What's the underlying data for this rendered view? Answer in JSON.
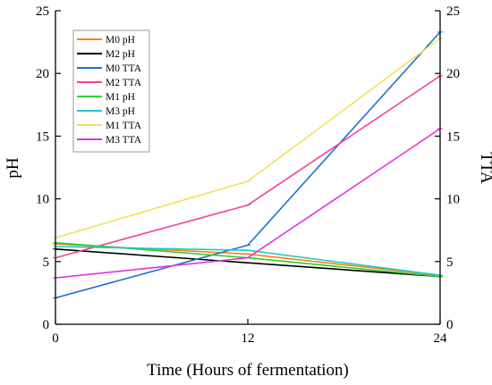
{
  "chart_data": {
    "type": "line",
    "x": [
      0,
      12,
      24
    ],
    "xlabel": "Time (Hours of fermentation)",
    "ylabel_left": "pH",
    "ylabel_right": "TTA",
    "xlim": [
      0,
      24
    ],
    "ylim_left": [
      0,
      25
    ],
    "ylim_right": [
      0,
      25
    ],
    "x_ticks": [
      0,
      12,
      24
    ],
    "y_ticks_left": [
      0,
      5,
      10,
      15,
      20,
      25
    ],
    "y_ticks_right": [
      0,
      5,
      10,
      15,
      20,
      25
    ],
    "grid": false,
    "legend_position": "top-left",
    "series": [
      {
        "name": "M0 pH",
        "color": "#ff7f0e",
        "values": [
          6.4,
          5.6,
          3.9
        ]
      },
      {
        "name": "M2 pH",
        "color": "#000000",
        "values": [
          6.0,
          4.9,
          3.8
        ]
      },
      {
        "name": "M0 TTA",
        "color": "#1f6fd0",
        "values": [
          2.1,
          6.3,
          23.3
        ]
      },
      {
        "name": "M2 TTA",
        "color": "#f0459a",
        "values": [
          5.3,
          9.5,
          19.8
        ]
      },
      {
        "name": "M1 pH",
        "color": "#2fcc2f",
        "values": [
          6.5,
          5.3,
          3.8
        ]
      },
      {
        "name": "M3 pH",
        "color": "#20c8c8",
        "values": [
          6.2,
          5.9,
          3.9
        ]
      },
      {
        "name": "M1 TTA",
        "color": "#f2e15a",
        "values": [
          6.9,
          11.4,
          22.8
        ]
      },
      {
        "name": "M3 TTA",
        "color": "#de34de",
        "values": [
          3.7,
          5.3,
          15.6
        ]
      }
    ]
  }
}
